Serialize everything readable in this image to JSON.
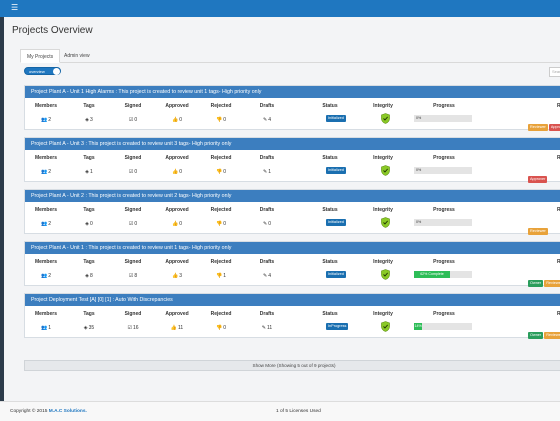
{
  "app": {
    "menu_icon": "hamburger-icon",
    "bar_color": "#1f77c0"
  },
  "page_title": "Projects Overview",
  "tabs": [
    {
      "label": "My Projects",
      "active": true
    },
    {
      "label": "Admin view",
      "active": false
    }
  ],
  "toggle": {
    "label": "overview"
  },
  "search": {
    "placeholder": "Search"
  },
  "columns": [
    "Members",
    "Tags",
    "Signed",
    "Approved",
    "Rejected",
    "Drafts",
    "Status",
    "Integrity",
    "Progress",
    "Ro"
  ],
  "icons": {
    "members": "users-icon",
    "tags": "tag-icon",
    "signed": "signed-icon",
    "approved": "thumbs-up-icon",
    "rejected": "thumbs-down-icon",
    "drafts": "pencil-icon",
    "integrity": "shield-check-icon"
  },
  "projects": [
    {
      "title": "Project Plant A - Unit 1 High Alarms : This project is created to review unit 1 tags- High priority only",
      "members": "2",
      "tags": "3",
      "signed": "0",
      "approved": "0",
      "rejected": "0",
      "drafts": "4",
      "status": "Initialized",
      "progress_text": "0%",
      "progress": 0,
      "roles": [
        "Reviewer",
        "Approver"
      ]
    },
    {
      "title": "Project Plant A - Unit 3 : This project is created to review unit 3 tags- High priority only",
      "members": "2",
      "tags": "1",
      "signed": "0",
      "approved": "0",
      "rejected": "0",
      "drafts": "1",
      "status": "Initialized",
      "progress_text": "0%",
      "progress": 0,
      "roles": [
        "Approver"
      ]
    },
    {
      "title": "Project Plant A - Unit 2 : This project is created to review unit 2 tags- High priority only",
      "members": "2",
      "tags": "0",
      "signed": "0",
      "approved": "0",
      "rejected": "0",
      "drafts": "0",
      "status": "Initialized",
      "progress_text": "0%",
      "progress": 0,
      "roles": [
        "Reviewer"
      ]
    },
    {
      "title": "Project Plant A - Unit 1 : This project is created to review unit 1 tags- High priority only",
      "members": "2",
      "tags": "8",
      "signed": "8",
      "approved": "3",
      "rejected": "1",
      "drafts": "4",
      "status": "Initialized",
      "progress_text": "62% Complete",
      "progress": 62,
      "roles": [
        "Owner",
        "Reviewer"
      ]
    },
    {
      "title": "Project Deployment Test [A] [0] [1] : Auto With Discrepancies",
      "members": "1",
      "tags": "35",
      "signed": "16",
      "approved": "11",
      "rejected": "0",
      "drafts": "11",
      "status": "InProgress",
      "progress_text": "14%",
      "progress": 14,
      "roles": [
        "Owner",
        "Reviewer"
      ]
    }
  ],
  "show_more": "Show More (Showing 5 out of 9 projects)",
  "footer": {
    "copyright_prefix": "Copyright © 2015",
    "brand": "M.A.C Solutions.",
    "licenses": "1 of 5 Licenses Used"
  },
  "colors": {
    "header": "#3c7ebf",
    "status": "#1a6fb0",
    "progress": "#2dbd57",
    "integrity": "#8ac926",
    "roles": {
      "Reviewer": "#e8a23a",
      "Approver": "#d9534f",
      "Owner": "#2a9d5c"
    }
  }
}
